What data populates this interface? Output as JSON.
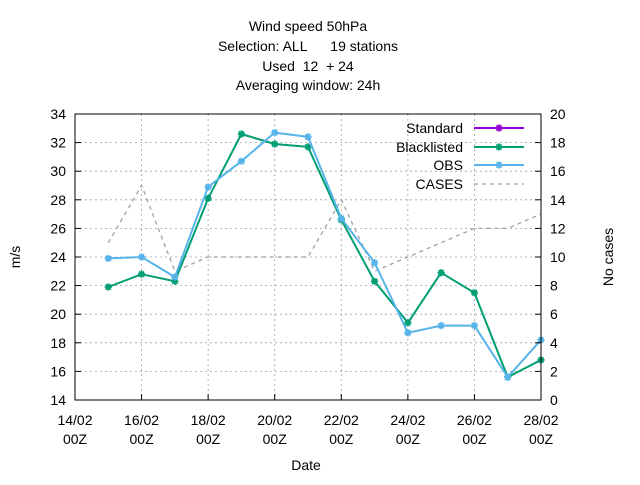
{
  "chart_data": {
    "type": "line",
    "title_lines": [
      "Wind speed 50hPa",
      "Selection: ALL      19 stations",
      "Used  12  + 24",
      "Averaging window: 24h"
    ],
    "xlabel": "Date",
    "ylabel": "m/s",
    "y2label": "No cases",
    "ylim": [
      14,
      34
    ],
    "y2lim": [
      0,
      20
    ],
    "yticks": [
      14,
      16,
      18,
      20,
      22,
      24,
      26,
      28,
      30,
      32,
      34
    ],
    "y2ticks": [
      0,
      2,
      4,
      6,
      8,
      10,
      12,
      14,
      16,
      18,
      20
    ],
    "xlim": [
      14,
      28
    ],
    "xticks": [
      {
        "x": 14,
        "line1": "14/02",
        "line2": "00Z"
      },
      {
        "x": 16,
        "line1": "16/02",
        "line2": "00Z"
      },
      {
        "x": 18,
        "line1": "18/02",
        "line2": "00Z"
      },
      {
        "x": 20,
        "line1": "20/02",
        "line2": "00Z"
      },
      {
        "x": 22,
        "line1": "22/02",
        "line2": "00Z"
      },
      {
        "x": 24,
        "line1": "24/02",
        "line2": "00Z"
      },
      {
        "x": 26,
        "line1": "26/02",
        "line2": "00Z"
      },
      {
        "x": 28,
        "line1": "28/02",
        "line2": "00Z"
      }
    ],
    "grid": true,
    "legend_position": "top-right",
    "series": [
      {
        "name": "Standard",
        "axis": "y",
        "color": "#9400d3",
        "style": "solid",
        "marker": "star",
        "x": [],
        "y": []
      },
      {
        "name": "Blacklisted",
        "axis": "y",
        "color": "#009e73",
        "style": "solid",
        "marker": "star",
        "x": [
          15,
          16,
          17,
          18,
          19,
          20,
          21,
          22,
          23,
          24,
          25,
          26,
          27,
          28
        ],
        "y": [
          21.9,
          22.8,
          22.3,
          28.1,
          32.6,
          31.9,
          31.7,
          26.6,
          22.3,
          19.4,
          22.9,
          21.5,
          15.6,
          16.8
        ]
      },
      {
        "name": "OBS",
        "axis": "y",
        "color": "#56b4e9",
        "style": "solid",
        "marker": "star",
        "x": [
          15,
          16,
          17,
          18,
          19,
          20,
          21,
          22,
          23,
          24,
          25,
          26,
          27,
          28
        ],
        "y": [
          23.9,
          24.0,
          22.6,
          28.9,
          30.7,
          32.7,
          32.4,
          26.7,
          23.6,
          18.7,
          19.2,
          19.2,
          15.6,
          18.2
        ]
      },
      {
        "name": "CASES",
        "axis": "y2",
        "color": "#a0a0a0",
        "style": "dashed",
        "marker": "none",
        "x": [
          15,
          16,
          17,
          18,
          19,
          20,
          21,
          22,
          23,
          24,
          25,
          26,
          27,
          28
        ],
        "y": [
          11,
          15,
          9,
          10,
          10,
          10,
          10,
          14,
          9,
          10,
          11,
          12,
          12,
          13
        ]
      }
    ]
  }
}
